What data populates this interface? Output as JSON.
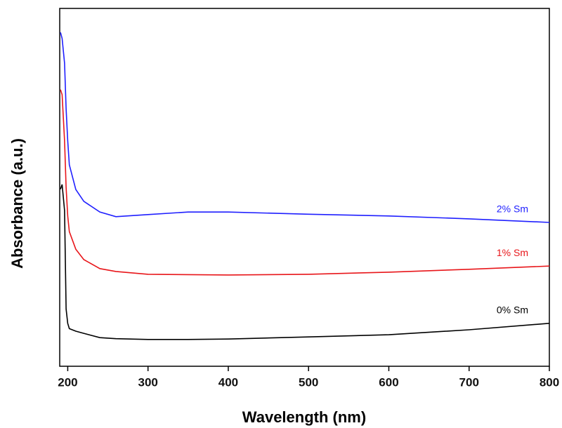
{
  "chart_data": {
    "type": "line",
    "x_label": "Wavelength (nm)",
    "y_label": "Absorbance (a.u.)",
    "xlim": [
      190,
      800
    ],
    "xticks": [
      200,
      300,
      400,
      500,
      600,
      700,
      800
    ],
    "ylim": [
      0,
      100
    ],
    "x": [
      191,
      193,
      196,
      198,
      200,
      202,
      210,
      220,
      240,
      260,
      300,
      350,
      400,
      500,
      600,
      700,
      800
    ],
    "series": [
      {
        "name": "2% Sm",
        "color": "#1f1fff",
        "values": [
          93.3,
          91.6,
          84.7,
          72,
          63,
          56.3,
          49.4,
          46.1,
          43.1,
          41.8,
          42.4,
          43.1,
          43.1,
          42.5,
          42.0,
          41.2,
          40.2
        ]
      },
      {
        "name": "1% Sm",
        "color": "#e8161a",
        "values": [
          77.3,
          75.9,
          63,
          50,
          42,
          37.6,
          32.7,
          29.8,
          27.3,
          26.5,
          25.7,
          25.6,
          25.5,
          25.7,
          26.3,
          27.1,
          28.0
        ]
      },
      {
        "name": "0% Sm",
        "color": "#000000",
        "values": [
          49.5,
          50.8,
          43.5,
          16,
          12,
          10.5,
          9.8,
          9.2,
          8.0,
          7.7,
          7.5,
          7.5,
          7.6,
          8.2,
          8.8,
          10.2,
          12.0
        ]
      }
    ]
  }
}
